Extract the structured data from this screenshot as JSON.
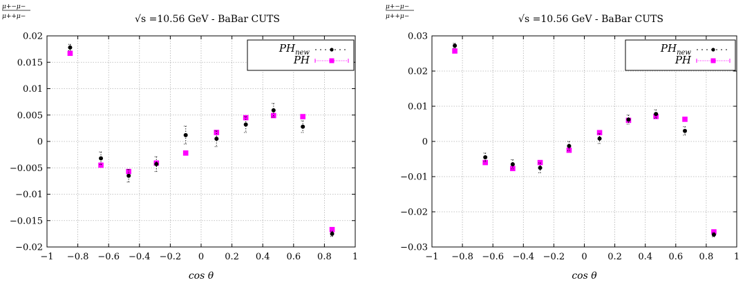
{
  "colors": {
    "ph_new": "#000000",
    "ph": "#ff00ff",
    "grid": "#b0b0b0"
  },
  "chart_data": [
    {
      "type": "scatter",
      "title": "√s =10.56 GeV - BaBar CUTS",
      "ylabel": "(μ+−μ−)/(μ++μ−)",
      "xlabel": "cos θ",
      "xlim": [
        -1,
        1
      ],
      "ylim": [
        -0.02,
        0.02
      ],
      "xticks": [
        "−1",
        "−0.8",
        "−0.6",
        "−0.4",
        "−0.2",
        "0",
        "0.2",
        "0.4",
        "0.6",
        "0.8",
        "1"
      ],
      "yticks": [
        "−0.02",
        "−0.015",
        "−0.01",
        "−0.005",
        "0",
        "0.005",
        "0.01",
        "0.015",
        "0.02"
      ],
      "grid": true,
      "legend_position": "top-right",
      "series": [
        {
          "name": "PH_new",
          "x": [
            -0.85,
            -0.65,
            -0.47,
            -0.29,
            -0.1,
            0.1,
            0.29,
            0.47,
            0.66,
            0.85
          ],
          "y": [
            0.0178,
            -0.0032,
            -0.0065,
            -0.0043,
            0.0012,
            0.0005,
            0.0032,
            0.0059,
            0.0028,
            -0.0175
          ],
          "err": [
            0.0006,
            0.0012,
            0.0012,
            0.0014,
            0.0017,
            0.0015,
            0.0015,
            0.0013,
            0.0011,
            0.0005
          ]
        },
        {
          "name": "PH",
          "x": [
            -0.85,
            -0.65,
            -0.47,
            -0.29,
            -0.1,
            0.1,
            0.29,
            0.47,
            0.66,
            0.85
          ],
          "y": [
            0.0167,
            -0.0045,
            -0.0057,
            -0.0041,
            -0.0022,
            0.0017,
            0.0045,
            0.0049,
            0.0047,
            -0.0167
          ]
        }
      ]
    },
    {
      "type": "scatter",
      "title": "√s =10.56 GeV - BaBar CUTS",
      "ylabel": "(μ+−μ−)/(μ++μ−)",
      "xlabel": "cos θ",
      "xlim": [
        -1,
        1
      ],
      "ylim": [
        -0.03,
        0.03
      ],
      "xticks": [
        "−1",
        "−0.8",
        "−0.6",
        "−0.4",
        "−0.2",
        "0",
        "0.2",
        "0.4",
        "0.6",
        "0.8",
        "1"
      ],
      "yticks": [
        "−0.03",
        "−0.02",
        "−0.01",
        "0",
        "0.01",
        "0.02",
        "0.03"
      ],
      "grid": true,
      "legend_position": "top-right",
      "series": [
        {
          "name": "PH_new",
          "x": [
            -0.85,
            -0.65,
            -0.47,
            -0.29,
            -0.1,
            0.1,
            0.29,
            0.47,
            0.66,
            0.85
          ],
          "y": [
            0.0272,
            -0.0045,
            -0.0065,
            -0.0075,
            -0.0013,
            0.0008,
            0.0062,
            0.0078,
            0.003,
            -0.0265
          ],
          "err": [
            0.0007,
            0.0012,
            0.0013,
            0.0014,
            0.0013,
            0.0014,
            0.0013,
            0.0012,
            0.0012,
            0.0006
          ]
        },
        {
          "name": "PH",
          "x": [
            -0.85,
            -0.65,
            -0.47,
            -0.29,
            -0.1,
            0.1,
            0.29,
            0.47,
            0.66,
            0.85
          ],
          "y": [
            0.0257,
            -0.006,
            -0.0077,
            -0.006,
            -0.0025,
            0.0025,
            0.006,
            0.0071,
            0.0063,
            -0.0257
          ]
        }
      ]
    }
  ]
}
